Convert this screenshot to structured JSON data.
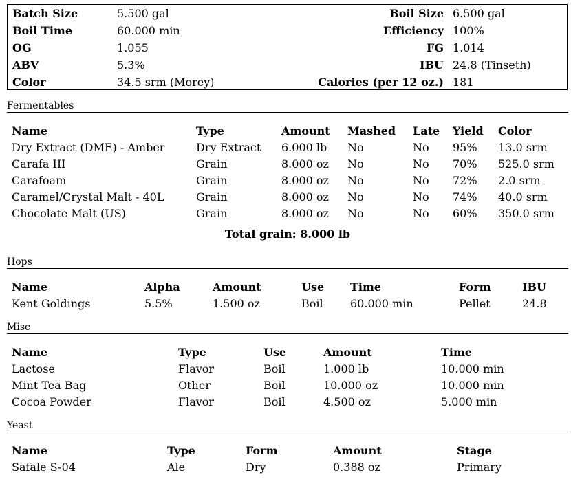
{
  "summary": {
    "batch_size_label": "Batch Size",
    "batch_size": "5.500 gal",
    "boil_size_label": "Boil Size",
    "boil_size": "6.500 gal",
    "boil_time_label": "Boil Time",
    "boil_time": "60.000 min",
    "efficiency_label": "Efficiency",
    "efficiency": "100%",
    "og_label": "OG",
    "og": "1.055",
    "fg_label": "FG",
    "fg": "1.014",
    "abv_label": "ABV",
    "abv": "5.3%",
    "ibu_label": "IBU",
    "ibu": "24.8 (Tinseth)",
    "color_label": "Color",
    "color": "34.5 srm (Morey)",
    "calories_label": "Calories (per 12 oz.)",
    "calories": "181"
  },
  "fermentables": {
    "title": "Fermentables",
    "headers": [
      "Name",
      "Type",
      "Amount",
      "Mashed",
      "Late",
      "Yield",
      "Color"
    ],
    "rows": [
      [
        "Dry Extract (DME) - Amber",
        "Dry Extract",
        "6.000 lb",
        "No",
        "No",
        "95%",
        "13.0 srm"
      ],
      [
        "Carafa III",
        "Grain",
        "8.000 oz",
        "No",
        "No",
        "70%",
        "525.0 srm"
      ],
      [
        "Carafoam",
        "Grain",
        "8.000 oz",
        "No",
        "No",
        "72%",
        "2.0 srm"
      ],
      [
        "Caramel/Crystal Malt - 40L",
        "Grain",
        "8.000 oz",
        "No",
        "No",
        "74%",
        "40.0 srm"
      ],
      [
        "Chocolate Malt (US)",
        "Grain",
        "8.000 oz",
        "No",
        "No",
        "60%",
        "350.0 srm"
      ]
    ],
    "total": "Total grain: 8.000 lb"
  },
  "hops": {
    "title": "Hops",
    "headers": [
      "Name",
      "Alpha",
      "Amount",
      "Use",
      "Time",
      "Form",
      "IBU"
    ],
    "rows": [
      [
        "Kent Goldings",
        "5.5%",
        "1.500 oz",
        "Boil",
        "60.000 min",
        "Pellet",
        "24.8"
      ]
    ]
  },
  "misc": {
    "title": "Misc",
    "headers": [
      "Name",
      "Type",
      "Use",
      "Amount",
      "Time"
    ],
    "rows": [
      [
        "Lactose",
        "Flavor",
        "Boil",
        "1.000 lb",
        "10.000 min"
      ],
      [
        "Mint Tea Bag",
        "Other",
        "Boil",
        "10.000 oz",
        "10.000 min"
      ],
      [
        "Cocoa Powder",
        "Flavor",
        "Boil",
        "4.500 oz",
        "5.000 min"
      ]
    ]
  },
  "yeast": {
    "title": "Yeast",
    "headers": [
      "Name",
      "Type",
      "Form",
      "Amount",
      "Stage"
    ],
    "rows": [
      [
        "Safale S-04",
        "Ale",
        "Dry",
        "0.388 oz",
        "Primary"
      ]
    ]
  }
}
